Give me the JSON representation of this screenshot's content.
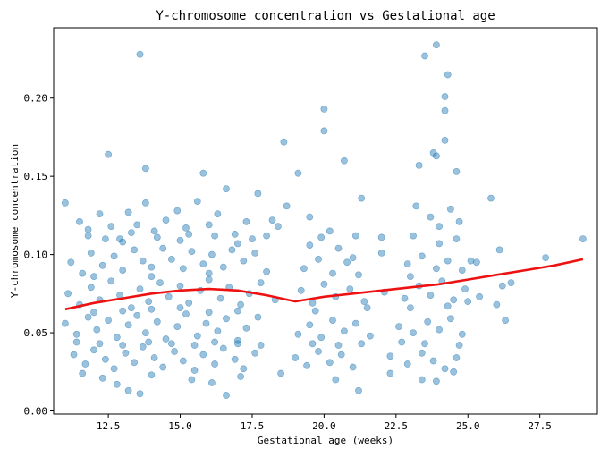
{
  "chart_data": {
    "type": "scatter",
    "title": "Y-chromosome concentration vs Gestational age",
    "xlabel": "Gestational age (weeks)",
    "ylabel": "Y-chromosome concentration",
    "xlim": [
      10.6,
      29.5
    ],
    "ylim": [
      -0.002,
      0.245
    ],
    "xticks": [
      12.5,
      15.0,
      17.5,
      20.0,
      22.5,
      25.0,
      27.5
    ],
    "xtick_labels": [
      "12.5",
      "15.0",
      "17.5",
      "20.0",
      "22.5",
      "25.0",
      "27.5"
    ],
    "yticks": [
      0.0,
      0.05,
      0.1,
      0.15,
      0.2
    ],
    "ytick_labels": [
      "0.00",
      "0.05",
      "0.10",
      "0.15",
      "0.20"
    ],
    "grid": false,
    "legend": "none",
    "scatter_color": "#1f77b4",
    "trend_color": "#ee1111",
    "trend": {
      "x": [
        11.0,
        12.0,
        13.0,
        14.0,
        15.0,
        16.0,
        17.0,
        18.0,
        19.0,
        20.0,
        21.0,
        22.0,
        23.0,
        24.0,
        25.0,
        26.0,
        27.0,
        28.0,
        29.0
      ],
      "y": [
        0.065,
        0.069,
        0.072,
        0.075,
        0.077,
        0.078,
        0.077,
        0.074,
        0.07,
        0.073,
        0.075,
        0.077,
        0.079,
        0.081,
        0.084,
        0.087,
        0.09,
        0.093,
        0.097
      ]
    },
    "points": [
      [
        13.6,
        0.228
      ],
      [
        23.9,
        0.234
      ],
      [
        23.5,
        0.227
      ],
      [
        24.3,
        0.215
      ],
      [
        24.2,
        0.201
      ],
      [
        24.2,
        0.192
      ],
      [
        20.0,
        0.193
      ],
      [
        20.0,
        0.179
      ],
      [
        24.2,
        0.173
      ],
      [
        18.6,
        0.172
      ],
      [
        20.7,
        0.16
      ],
      [
        12.5,
        0.164
      ],
      [
        23.8,
        0.165
      ],
      [
        23.9,
        0.163
      ],
      [
        24.6,
        0.153
      ],
      [
        13.8,
        0.155
      ],
      [
        15.8,
        0.152
      ],
      [
        19.1,
        0.152
      ],
      [
        23.3,
        0.157
      ],
      [
        11.0,
        0.133
      ],
      [
        11.5,
        0.121
      ],
      [
        11.8,
        0.112
      ],
      [
        12.2,
        0.126
      ],
      [
        12.6,
        0.118
      ],
      [
        12.9,
        0.11
      ],
      [
        13.2,
        0.127
      ],
      [
        13.5,
        0.119
      ],
      [
        13.8,
        0.133
      ],
      [
        14.1,
        0.115
      ],
      [
        14.5,
        0.122
      ],
      [
        14.9,
        0.128
      ],
      [
        15.2,
        0.117
      ],
      [
        15.6,
        0.134
      ],
      [
        16.0,
        0.119
      ],
      [
        16.3,
        0.126
      ],
      [
        16.6,
        0.142
      ],
      [
        16.9,
        0.113
      ],
      [
        17.3,
        0.121
      ],
      [
        17.7,
        0.139
      ],
      [
        18.2,
        0.122
      ],
      [
        18.7,
        0.131
      ],
      [
        19.5,
        0.124
      ],
      [
        20.2,
        0.115
      ],
      [
        21.3,
        0.136
      ],
      [
        22.0,
        0.101
      ],
      [
        23.2,
        0.131
      ],
      [
        23.7,
        0.124
      ],
      [
        24.0,
        0.118
      ],
      [
        24.4,
        0.129
      ],
      [
        24.7,
        0.121
      ],
      [
        25.8,
        0.136
      ],
      [
        26.1,
        0.103
      ],
      [
        29.0,
        0.11
      ],
      [
        11.2,
        0.095
      ],
      [
        11.6,
        0.088
      ],
      [
        11.9,
        0.101
      ],
      [
        12.3,
        0.093
      ],
      [
        12.7,
        0.099
      ],
      [
        13.0,
        0.09
      ],
      [
        13.4,
        0.103
      ],
      [
        13.7,
        0.096
      ],
      [
        14.0,
        0.092
      ],
      [
        14.4,
        0.104
      ],
      [
        14.7,
        0.097
      ],
      [
        15.1,
        0.091
      ],
      [
        15.4,
        0.102
      ],
      [
        15.8,
        0.094
      ],
      [
        16.1,
        0.1
      ],
      [
        16.5,
        0.092
      ],
      [
        16.8,
        0.103
      ],
      [
        17.2,
        0.096
      ],
      [
        17.6,
        0.101
      ],
      [
        18.0,
        0.089
      ],
      [
        19.3,
        0.091
      ],
      [
        19.8,
        0.097
      ],
      [
        20.3,
        0.088
      ],
      [
        20.8,
        0.095
      ],
      [
        21.2,
        0.087
      ],
      [
        22.9,
        0.094
      ],
      [
        23.4,
        0.099
      ],
      [
        23.9,
        0.091
      ],
      [
        24.3,
        0.096
      ],
      [
        24.8,
        0.09
      ],
      [
        25.3,
        0.095
      ],
      [
        27.7,
        0.098
      ],
      [
        11.1,
        0.075
      ],
      [
        11.5,
        0.068
      ],
      [
        11.9,
        0.079
      ],
      [
        12.2,
        0.071
      ],
      [
        12.6,
        0.083
      ],
      [
        12.9,
        0.074
      ],
      [
        13.3,
        0.066
      ],
      [
        13.6,
        0.078
      ],
      [
        13.9,
        0.07
      ],
      [
        14.3,
        0.082
      ],
      [
        14.6,
        0.073
      ],
      [
        15.0,
        0.08
      ],
      [
        15.3,
        0.069
      ],
      [
        15.7,
        0.077
      ],
      [
        16.0,
        0.084
      ],
      [
        16.4,
        0.072
      ],
      [
        16.7,
        0.079
      ],
      [
        17.1,
        0.068
      ],
      [
        17.4,
        0.075
      ],
      [
        17.8,
        0.082
      ],
      [
        18.3,
        0.071
      ],
      [
        19.2,
        0.077
      ],
      [
        19.6,
        0.069
      ],
      [
        20.0,
        0.081
      ],
      [
        20.4,
        0.073
      ],
      [
        20.9,
        0.078
      ],
      [
        21.4,
        0.07
      ],
      [
        22.1,
        0.076
      ],
      [
        22.8,
        0.072
      ],
      [
        23.3,
        0.08
      ],
      [
        23.7,
        0.074
      ],
      [
        24.1,
        0.083
      ],
      [
        24.5,
        0.071
      ],
      [
        24.9,
        0.078
      ],
      [
        25.4,
        0.073
      ],
      [
        26.2,
        0.08
      ],
      [
        26.5,
        0.082
      ],
      [
        11.0,
        0.056
      ],
      [
        11.4,
        0.049
      ],
      [
        11.8,
        0.06
      ],
      [
        12.1,
        0.052
      ],
      [
        12.5,
        0.058
      ],
      [
        12.8,
        0.047
      ],
      [
        13.2,
        0.055
      ],
      [
        13.5,
        0.061
      ],
      [
        13.8,
        0.05
      ],
      [
        14.2,
        0.057
      ],
      [
        14.5,
        0.046
      ],
      [
        14.9,
        0.054
      ],
      [
        15.2,
        0.062
      ],
      [
        15.6,
        0.048
      ],
      [
        15.9,
        0.056
      ],
      [
        16.3,
        0.051
      ],
      [
        16.6,
        0.059
      ],
      [
        17.0,
        0.045
      ],
      [
        17.3,
        0.053
      ],
      [
        17.7,
        0.06
      ],
      [
        19.1,
        0.049
      ],
      [
        19.5,
        0.055
      ],
      [
        19.9,
        0.047
      ],
      [
        20.3,
        0.058
      ],
      [
        20.7,
        0.051
      ],
      [
        21.1,
        0.056
      ],
      [
        21.6,
        0.048
      ],
      [
        22.6,
        0.054
      ],
      [
        23.1,
        0.05
      ],
      [
        23.6,
        0.057
      ],
      [
        24.0,
        0.052
      ],
      [
        24.4,
        0.059
      ],
      [
        24.8,
        0.049
      ],
      [
        26.3,
        0.058
      ],
      [
        26.0,
        0.068
      ],
      [
        11.3,
        0.036
      ],
      [
        11.7,
        0.03
      ],
      [
        12.0,
        0.039
      ],
      [
        12.4,
        0.033
      ],
      [
        12.7,
        0.027
      ],
      [
        13.1,
        0.037
      ],
      [
        13.4,
        0.031
      ],
      [
        13.7,
        0.041
      ],
      [
        14.1,
        0.034
      ],
      [
        14.4,
        0.028
      ],
      [
        14.8,
        0.038
      ],
      [
        15.1,
        0.032
      ],
      [
        15.5,
        0.026
      ],
      [
        15.8,
        0.036
      ],
      [
        16.2,
        0.03
      ],
      [
        16.5,
        0.04
      ],
      [
        16.9,
        0.033
      ],
      [
        17.2,
        0.027
      ],
      [
        17.6,
        0.037
      ],
      [
        19.0,
        0.034
      ],
      [
        19.4,
        0.029
      ],
      [
        19.8,
        0.038
      ],
      [
        20.2,
        0.031
      ],
      [
        20.6,
        0.036
      ],
      [
        21.0,
        0.028
      ],
      [
        22.3,
        0.035
      ],
      [
        22.9,
        0.03
      ],
      [
        23.4,
        0.037
      ],
      [
        23.8,
        0.032
      ],
      [
        24.2,
        0.027
      ],
      [
        24.6,
        0.034
      ],
      [
        11.6,
        0.024
      ],
      [
        12.3,
        0.021
      ],
      [
        12.8,
        0.017
      ],
      [
        13.2,
        0.013
      ],
      [
        13.6,
        0.011
      ],
      [
        14.0,
        0.023
      ],
      [
        15.4,
        0.02
      ],
      [
        16.1,
        0.018
      ],
      [
        16.6,
        0.01
      ],
      [
        17.1,
        0.022
      ],
      [
        18.5,
        0.024
      ],
      [
        20.4,
        0.02
      ],
      [
        21.2,
        0.013
      ],
      [
        22.3,
        0.024
      ],
      [
        23.4,
        0.02
      ],
      [
        24.5,
        0.025
      ],
      [
        23.9,
        0.019
      ],
      [
        12.0,
        0.086
      ],
      [
        13.0,
        0.108
      ],
      [
        14.0,
        0.086
      ],
      [
        15.0,
        0.109
      ],
      [
        16.0,
        0.088
      ],
      [
        17.0,
        0.107
      ],
      [
        18.0,
        0.112
      ],
      [
        19.5,
        0.106
      ],
      [
        20.5,
        0.104
      ],
      [
        21.0,
        0.098
      ],
      [
        23.0,
        0.086
      ],
      [
        24.0,
        0.107
      ],
      [
        25.1,
        0.096
      ],
      [
        12.0,
        0.063
      ],
      [
        13.0,
        0.064
      ],
      [
        14.0,
        0.065
      ],
      [
        15.0,
        0.066
      ],
      [
        16.0,
        0.063
      ],
      [
        17.0,
        0.064
      ],
      [
        19.7,
        0.064
      ],
      [
        21.5,
        0.066
      ],
      [
        23.0,
        0.066
      ],
      [
        24.3,
        0.067
      ],
      [
        25.0,
        0.07
      ],
      [
        11.4,
        0.044
      ],
      [
        12.2,
        0.043
      ],
      [
        13.0,
        0.042
      ],
      [
        13.9,
        0.044
      ],
      [
        14.7,
        0.043
      ],
      [
        15.5,
        0.042
      ],
      [
        16.2,
        0.044
      ],
      [
        17.0,
        0.043
      ],
      [
        17.8,
        0.042
      ],
      [
        19.6,
        0.043
      ],
      [
        20.5,
        0.042
      ],
      [
        21.3,
        0.043
      ],
      [
        22.7,
        0.044
      ],
      [
        23.5,
        0.043
      ],
      [
        24.7,
        0.042
      ],
      [
        11.8,
        0.116
      ],
      [
        12.4,
        0.11
      ],
      [
        13.3,
        0.114
      ],
      [
        14.2,
        0.111
      ],
      [
        15.3,
        0.113
      ],
      [
        16.2,
        0.112
      ],
      [
        17.5,
        0.11
      ],
      [
        18.4,
        0.118
      ],
      [
        19.9,
        0.111
      ],
      [
        21.1,
        0.112
      ],
      [
        22.0,
        0.111
      ],
      [
        23.1,
        0.112
      ],
      [
        24.6,
        0.11
      ]
    ]
  }
}
